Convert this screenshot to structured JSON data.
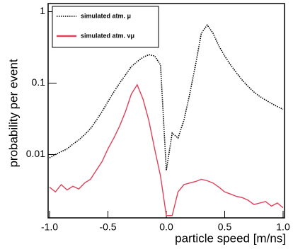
{
  "chart_data": {
    "type": "line",
    "xlabel": "particle speed [m/ns]",
    "ylabel": "probability per event",
    "x": [
      -1.0,
      -0.95,
      -0.9,
      -0.85,
      -0.8,
      -0.75,
      -0.7,
      -0.65,
      -0.6,
      -0.55,
      -0.5,
      -0.45,
      -0.4,
      -0.35,
      -0.3,
      -0.25,
      -0.2,
      -0.15,
      -0.1,
      -0.05,
      0.0,
      0.05,
      0.1,
      0.15,
      0.2,
      0.25,
      0.3,
      0.35,
      0.4,
      0.45,
      0.5,
      0.55,
      0.6,
      0.65,
      0.7,
      0.75,
      0.8,
      0.85,
      0.9,
      0.95,
      1.0
    ],
    "series": [
      {
        "name": "simulated atm. μ",
        "color": "#000000",
        "style": "dotted",
        "values": [
          0.009,
          0.01,
          0.011,
          0.012,
          0.014,
          0.016,
          0.019,
          0.023,
          0.03,
          0.04,
          0.055,
          0.075,
          0.1,
          0.13,
          0.17,
          0.2,
          0.23,
          0.25,
          0.24,
          0.18,
          0.006,
          0.02,
          0.017,
          0.03,
          0.07,
          0.18,
          0.5,
          0.65,
          0.5,
          0.33,
          0.24,
          0.18,
          0.14,
          0.11,
          0.09,
          0.075,
          0.065,
          0.058,
          0.052,
          0.047,
          0.043
        ]
      },
      {
        "name": "simulated atm. νμ",
        "color": "#e0405a",
        "style": "solid",
        "values": [
          0.0035,
          0.003,
          0.0038,
          0.0032,
          0.0036,
          0.0033,
          0.004,
          0.0045,
          0.006,
          0.008,
          0.012,
          0.017,
          0.025,
          0.04,
          0.07,
          0.095,
          0.06,
          0.03,
          0.012,
          0.005,
          0.0014,
          0.0014,
          0.003,
          0.0038,
          0.004,
          0.0042,
          0.0045,
          0.0043,
          0.004,
          0.0035,
          0.003,
          0.0028,
          0.0026,
          0.0025,
          0.0023,
          0.002,
          0.0021,
          0.0022,
          0.0019,
          0.0021,
          0.0018
        ]
      }
    ],
    "log_y": true,
    "xlim": [
      -1.0,
      1.0
    ],
    "ylim": [
      0.0013,
      1.3
    ],
    "xticks": [
      {
        "value": -1.0,
        "label": "-1.0"
      },
      {
        "value": -0.5,
        "label": "-0.5"
      },
      {
        "value": 0.0,
        "label": "0.0"
      },
      {
        "value": 0.5,
        "label": "0.5"
      },
      {
        "value": 1.0,
        "label": "1.0"
      }
    ],
    "yticks": [
      0.01,
      0.1,
      1
    ],
    "legend": "upper left"
  }
}
